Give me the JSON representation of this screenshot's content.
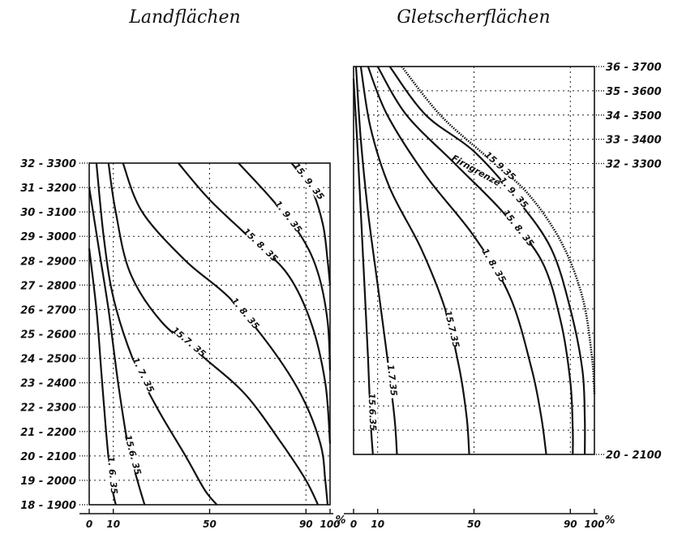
{
  "chart_data": [
    {
      "type": "line",
      "title": "Landflächen",
      "xlabel": "%",
      "ylabel": "",
      "xlim": [
        0,
        100
      ],
      "ylim": [
        1900,
        3300
      ],
      "grid": true,
      "y_ticks": [
        "18 - 1900",
        "19 - 2000",
        "20 - 2100",
        "21 - 2200",
        "22 - 2300",
        "23 - 2400",
        "24 - 2500",
        "25 - 2600",
        "26 - 2700",
        "27 - 2800",
        "28 - 2900",
        "29 - 3000",
        "30 - 3100",
        "31 - 3200",
        "32 - 3300"
      ],
      "x_ticks": [
        {
          "label": "0",
          "value": 0
        },
        {
          "label": "10",
          "value": 10
        },
        {
          "label": "50",
          "value": 50
        },
        {
          "label": "90",
          "value": 90
        },
        {
          "label": "100",
          "value": 100
        }
      ],
      "series": [
        {
          "name": "1. 6. 35",
          "points": [
            [
              0,
              2950
            ],
            [
              3,
              2700
            ],
            [
              5,
              2450
            ],
            [
              7,
              2200
            ],
            [
              9,
              2000
            ],
            [
              11,
              1900
            ]
          ]
        },
        {
          "name": "15.6. 35",
          "points": [
            [
              0,
              3200
            ],
            [
              4,
              2950
            ],
            [
              8,
              2700
            ],
            [
              12,
              2400
            ],
            [
              16,
              2150
            ],
            [
              20,
              2000
            ],
            [
              23,
              1900
            ]
          ]
        },
        {
          "name": "1. 7. 35",
          "points": [
            [
              3,
              3300
            ],
            [
              6,
              3000
            ],
            [
              10,
              2750
            ],
            [
              18,
              2500
            ],
            [
              28,
              2300
            ],
            [
              40,
              2100
            ],
            [
              48,
              1960
            ],
            [
              53,
              1900
            ]
          ]
        },
        {
          "name": "15.7. 35",
          "points": [
            [
              8,
              3300
            ],
            [
              11,
              3100
            ],
            [
              17,
              2850
            ],
            [
              30,
              2650
            ],
            [
              48,
              2500
            ],
            [
              65,
              2350
            ],
            [
              80,
              2150
            ],
            [
              90,
              2000
            ],
            [
              95,
              1900
            ]
          ]
        },
        {
          "name": "1. 8. 35",
          "points": [
            [
              14,
              3300
            ],
            [
              22,
              3100
            ],
            [
              40,
              2900
            ],
            [
              58,
              2750
            ],
            [
              75,
              2550
            ],
            [
              88,
              2350
            ],
            [
              96,
              2150
            ],
            [
              98,
              2000
            ],
            [
              99,
              1900
            ]
          ]
        },
        {
          "name": "15. 8. 35",
          "points": [
            [
              37,
              3300
            ],
            [
              50,
              3150
            ],
            [
              66,
              3000
            ],
            [
              82,
              2850
            ],
            [
              92,
              2650
            ],
            [
              98,
              2400
            ],
            [
              100,
              2150
            ]
          ]
        },
        {
          "name": "1. 9. 35",
          "points": [
            [
              62,
              3300
            ],
            [
              76,
              3150
            ],
            [
              88,
              3000
            ],
            [
              95,
              2850
            ],
            [
              99,
              2650
            ],
            [
              100,
              2450
            ]
          ]
        },
        {
          "name": "15. 9. 35",
          "points": [
            [
              84,
              3300
            ],
            [
              92,
              3200
            ],
            [
              97,
              3050
            ],
            [
              99,
              2900
            ],
            [
              100,
              2800
            ]
          ]
        }
      ]
    },
    {
      "type": "line",
      "title": "Gletscherflächen",
      "xlabel": "%",
      "ylabel": "",
      "xlim": [
        0,
        100
      ],
      "ylim": [
        2100,
        3700
      ],
      "grid": true,
      "y_ticks": [
        "36 - 3700",
        "35 - 3600",
        "34 - 3500",
        "33 - 3400",
        "32 - 3300",
        "20 - 2100"
      ],
      "x_ticks": [
        {
          "label": "0",
          "value": 0
        },
        {
          "label": "10",
          "value": 10
        },
        {
          "label": "50",
          "value": 50
        },
        {
          "label": "90",
          "value": 90
        },
        {
          "label": "100",
          "value": 100
        }
      ],
      "series": [
        {
          "name": "15.6.35",
          "points": [
            [
              0,
              3650
            ],
            [
              2,
              3300
            ],
            [
              4,
              2900
            ],
            [
              6,
              2500
            ],
            [
              7,
              2250
            ],
            [
              8,
              2100
            ]
          ]
        },
        {
          "name": "1.7.35",
          "points": [
            [
              1,
              3700
            ],
            [
              3,
              3400
            ],
            [
              6,
              3100
            ],
            [
              10,
              2800
            ],
            [
              14,
              2500
            ],
            [
              17,
              2250
            ],
            [
              18,
              2100
            ]
          ]
        },
        {
          "name": "15.7.35",
          "points": [
            [
              3,
              3700
            ],
            [
              7,
              3450
            ],
            [
              15,
              3200
            ],
            [
              28,
              2950
            ],
            [
              38,
              2700
            ],
            [
              44,
              2450
            ],
            [
              47,
              2250
            ],
            [
              48,
              2100
            ]
          ]
        },
        {
          "name": "1. 8. 35",
          "points": [
            [
              6,
              3700
            ],
            [
              14,
              3500
            ],
            [
              30,
              3250
            ],
            [
              50,
              3000
            ],
            [
              65,
              2750
            ],
            [
              74,
              2450
            ],
            [
              78,
              2250
            ],
            [
              80,
              2100
            ]
          ]
        },
        {
          "name": "15. 8. 35",
          "points": [
            [
              10,
              3700
            ],
            [
              22,
              3500
            ],
            [
              42,
              3300
            ],
            [
              62,
              3100
            ],
            [
              78,
              2900
            ],
            [
              86,
              2650
            ],
            [
              90,
              2400
            ],
            [
              91,
              2200
            ],
            [
              91,
              2100
            ]
          ]
        },
        {
          "name": "1. 9. 35",
          "points": [
            [
              15,
              3700
            ],
            [
              30,
              3500
            ],
            [
              50,
              3350
            ],
            [
              68,
              3150
            ],
            [
              82,
              2950
            ],
            [
              90,
              2700
            ],
            [
              95,
              2450
            ],
            [
              96,
              2250
            ],
            [
              96,
              2100
            ]
          ]
        },
        {
          "name": "15.9.35",
          "dashed": true,
          "points": [
            [
              20,
              3700
            ],
            [
              36,
              3500
            ],
            [
              55,
              3330
            ],
            [
              72,
              3180
            ],
            [
              86,
              2980
            ],
            [
              95,
              2750
            ],
            [
              99,
              2500
            ],
            [
              100,
              2350
            ]
          ]
        }
      ],
      "annotations": [
        {
          "text": "Firngrenze"
        }
      ]
    }
  ]
}
